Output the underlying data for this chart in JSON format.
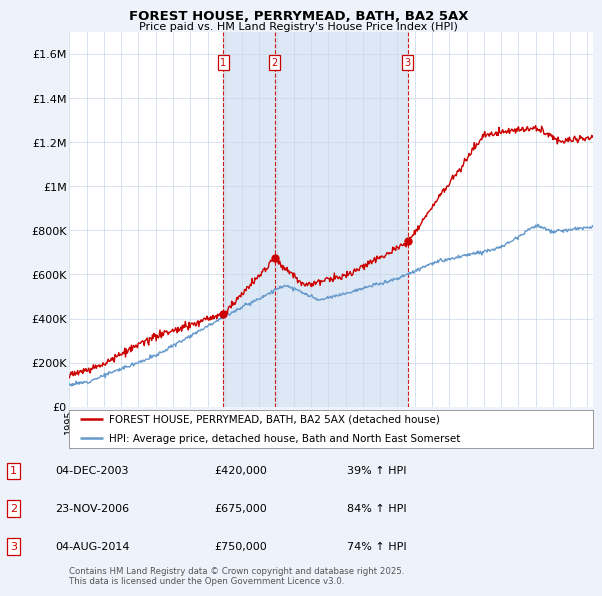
{
  "title": "FOREST HOUSE, PERRYMEAD, BATH, BA2 5AX",
  "subtitle": "Price paid vs. HM Land Registry's House Price Index (HPI)",
  "xlim": [
    1995.0,
    2025.3
  ],
  "ylim": [
    0,
    1700000
  ],
  "yticks": [
    0,
    200000,
    400000,
    600000,
    800000,
    1000000,
    1200000,
    1400000,
    1600000
  ],
  "ytick_labels": [
    "£0",
    "£200K",
    "£400K",
    "£600K",
    "£800K",
    "£1M",
    "£1.2M",
    "£1.4M",
    "£1.6M"
  ],
  "sale_dates_num": [
    2003.92,
    2006.89,
    2014.59
  ],
  "sale_prices": [
    420000,
    675000,
    750000
  ],
  "sale_labels": [
    "1",
    "2",
    "3"
  ],
  "sale_date_strs": [
    "04-DEC-2003",
    "23-NOV-2006",
    "04-AUG-2014"
  ],
  "sale_price_strs": [
    "£420,000",
    "£675,000",
    "£750,000"
  ],
  "sale_hpi_pcts": [
    "39%",
    "84%",
    "74%"
  ],
  "legend_line1": "FOREST HOUSE, PERRYMEAD, BATH, BA2 5AX (detached house)",
  "legend_line2": "HPI: Average price, detached house, Bath and North East Somerset",
  "footer": "Contains HM Land Registry data © Crown copyright and database right 2025.\nThis data is licensed under the Open Government Licence v3.0.",
  "house_color": "#cc0000",
  "hpi_color": "#6699cc",
  "shade_color": "#dce8f5",
  "background_color": "#eef2fb",
  "plot_bg_color": "#ffffff"
}
